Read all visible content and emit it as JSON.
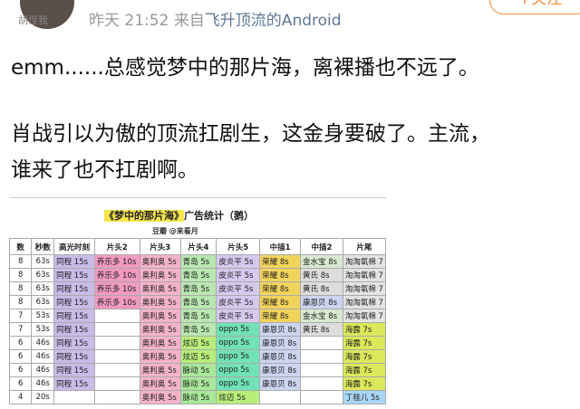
{
  "header": {
    "user_name": "胡侄我",
    "time_day": "昨天",
    "time": "21:52",
    "source_prefix": "来自",
    "source": "飞升顶流的Android",
    "follow": "+关注"
  },
  "post": {
    "lines": [
      "emm......总感觉梦中的那片海，离裸播也不远了。",
      "肖战引以为傲的顶流扛剧生，这金身要破了。主流，",
      "谁来了也不扛剧啊。"
    ]
  },
  "image": {
    "title_highlight": "《梦中的那片海》",
    "title_rest": "广告统计（鹅）",
    "credit": "豆瓣 @来看月",
    "table": {
      "columns": [
        "数",
        "秒数",
        "高光时刻",
        "片头2",
        "片头3",
        "片头4",
        "片头5",
        "中插1",
        "中插2",
        "片尾"
      ],
      "rows": [
        {
          "cells": [
            8,
            "63s",
            "同程 15s",
            "养乐多 10s",
            "奥利奥 5s",
            "青岛 5s",
            "皮炎平 5s",
            "荣耀 8s",
            "金水宝 8s",
            "淘淘氧棉 7"
          ],
          "colors": [
            null,
            null,
            "#c9bbe8",
            "#f29ac0",
            "#f5b3cb",
            "#b9e7b0",
            "#d6c8ee",
            "#f2d45c",
            "#d7e9d0",
            "#e3e3e3"
          ]
        },
        {
          "cells": [
            8,
            "63s",
            "同程 15s",
            "养乐多 10s",
            "奥利奥 5s",
            "青岛 5s",
            "皮炎平 5s",
            "荣耀 8s",
            "黄氏 8s",
            "淘淘氧棉 7"
          ],
          "colors": [
            null,
            null,
            "#c9bbe8",
            "#f29ac0",
            "#f5b3cb",
            "#b9e7b0",
            "#d6c8ee",
            "#f2d45c",
            "#dddddd",
            "#e3e3e3"
          ]
        },
        {
          "cells": [
            8,
            "63s",
            "同程 15s",
            "养乐多 10s",
            "奥利奥 5s",
            "青岛 5s",
            "皮炎平 5s",
            "荣耀 8s",
            "黄氏 8s",
            "淘淘氧棉 7"
          ],
          "colors": [
            null,
            null,
            "#c9bbe8",
            "#f29ac0",
            "#f5b3cb",
            "#b9e7b0",
            "#d6c8ee",
            "#f2d45c",
            "#dddddd",
            "#e3e3e3"
          ]
        },
        {
          "cells": [
            8,
            "63s",
            "同程 15s",
            "养乐多 10s",
            "奥利奥 5s",
            "青岛 5s",
            "皮炎平 5s",
            "荣耀 8s",
            "康恩贝 8s",
            "淘淘氧棉 7"
          ],
          "colors": [
            null,
            null,
            "#c9bbe8",
            "#f29ac0",
            "#f5b3cb",
            "#b9e7b0",
            "#d6c8ee",
            "#f2d45c",
            "#cbd5f0",
            "#e3e3e3"
          ]
        },
        {
          "cells": [
            7,
            "53s",
            "同程 15s",
            null,
            "奥利奥 5s",
            "青岛 5s",
            "皮炎平 5s",
            "荣耀 8s",
            "金水宝 8s",
            "淘淘氧棉 7"
          ],
          "colors": [
            null,
            null,
            "#c9bbe8",
            null,
            "#f5b3cb",
            "#b9e7b0",
            "#d6c8ee",
            "#f2d45c",
            "#d7e9d0",
            "#e3e3e3"
          ]
        },
        {
          "cells": [
            7,
            "53s",
            "同程 15s",
            null,
            "奥利奥 5s",
            "青岛 5s",
            "oppo 5s",
            "康恩贝 8s",
            "黄氏 8s",
            "海露 7s"
          ],
          "colors": [
            null,
            null,
            "#c9bbe8",
            null,
            "#f5b3cb",
            "#b9e7b0",
            "#70e2b6",
            "#cbd5f0",
            "#dddddd",
            "#dbe85a"
          ]
        },
        {
          "cells": [
            6,
            "46s",
            "同程 15s",
            null,
            "奥利奥 5s",
            "炫迈 5s",
            "oppo 5s",
            "康恩贝 8s",
            null,
            "海露 7s"
          ],
          "colors": [
            null,
            null,
            "#c9bbe8",
            null,
            "#f5b3cb",
            "#b8ee7a",
            "#70e2b6",
            "#cbd5f0",
            null,
            "#dbe85a"
          ]
        },
        {
          "cells": [
            6,
            "46s",
            "同程 15s",
            null,
            "奥利奥 5s",
            "炫迈 5s",
            "oppo 5s",
            "康恩贝 8s",
            null,
            "海露 7s"
          ],
          "colors": [
            null,
            null,
            "#c9bbe8",
            null,
            "#f5b3cb",
            "#b8ee7a",
            "#70e2b6",
            "#cbd5f0",
            null,
            "#dbe85a"
          ]
        },
        {
          "cells": [
            6,
            "46s",
            "同程 15s",
            null,
            "奥利奥 5s",
            "脉动 5s",
            "oppo 5s",
            "康恩贝 8s",
            null,
            "海露 7s"
          ],
          "colors": [
            null,
            null,
            "#c9bbe8",
            null,
            "#f5b3cb",
            "#a8e89a",
            "#70e2b6",
            "#cbd5f0",
            null,
            "#dbe85a"
          ]
        },
        {
          "cells": [
            6,
            "46s",
            "同程 15s",
            null,
            "奥利奥 5s",
            "脉动 5s",
            "oppo 5s",
            "康恩贝 8s",
            null,
            "海露 7s"
          ],
          "colors": [
            null,
            null,
            "#c9bbe8",
            null,
            "#f5b3cb",
            "#a8e89a",
            "#70e2b6",
            "#cbd5f0",
            null,
            "#dbe85a"
          ]
        },
        {
          "cells": [
            4,
            "20s",
            null,
            null,
            "奥利奥 5s",
            "脉动 5s",
            "炫迈 5s",
            null,
            null,
            "丁桂儿 5s"
          ],
          "colors": [
            null,
            null,
            null,
            null,
            "#f5b3cb",
            "#a8e89a",
            "#b8ee7a",
            null,
            null,
            "#a9d6f5"
          ]
        }
      ]
    }
  }
}
